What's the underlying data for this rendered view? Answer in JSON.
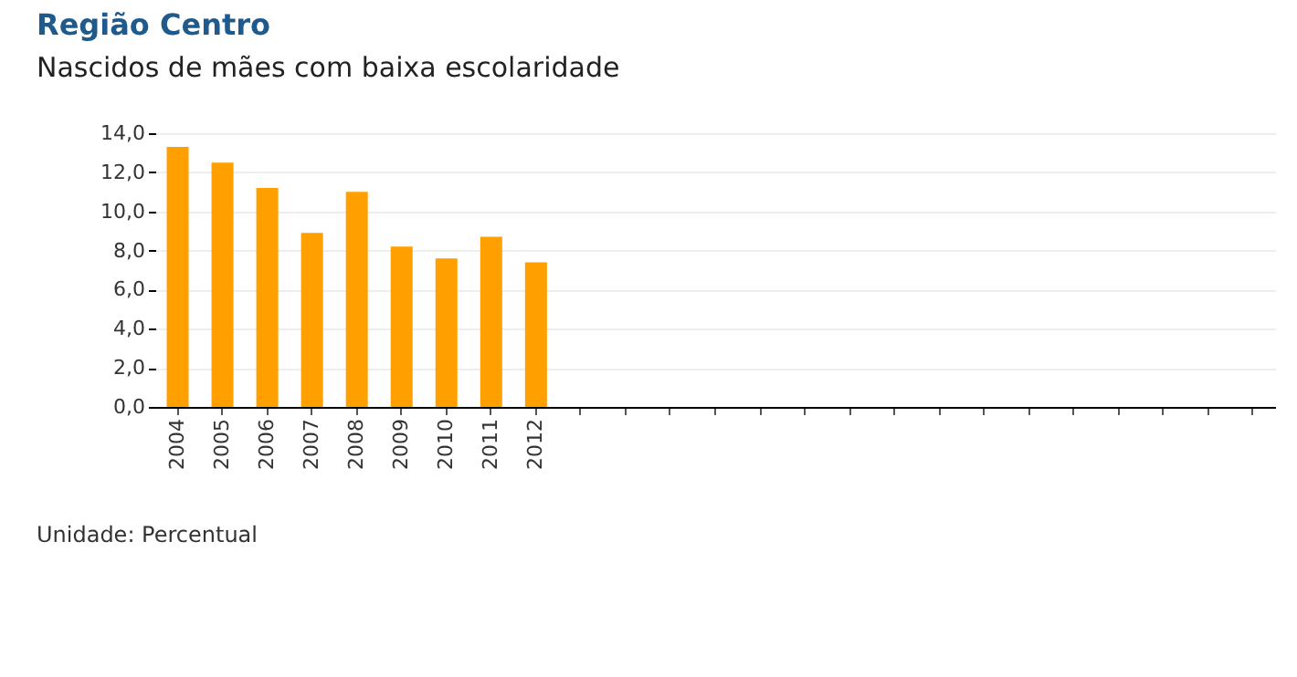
{
  "chart_data": {
    "type": "bar",
    "title": "Região Centro",
    "subtitle": "Nascidos de mães com baixa escolaridade",
    "categories": [
      "2004",
      "2005",
      "2006",
      "2007",
      "2008",
      "2009",
      "2010",
      "2011",
      "2012",
      null,
      null,
      null,
      null,
      null,
      null,
      null,
      null,
      null,
      null,
      null,
      null,
      null,
      null,
      null,
      null
    ],
    "values": [
      13.3,
      12.5,
      11.2,
      8.9,
      11.0,
      8.2,
      7.6,
      8.7,
      7.4,
      null,
      null,
      null,
      null,
      null,
      null,
      null,
      null,
      null,
      null,
      null,
      null,
      null,
      null,
      null,
      null
    ],
    "color": "#ff9f00",
    "ylim": [
      0,
      14
    ],
    "yticks": [
      {
        "value": 0,
        "label": "0,0"
      },
      {
        "value": 2,
        "label": "2,0"
      },
      {
        "value": 4,
        "label": "4,0"
      },
      {
        "value": 6,
        "label": "6,0"
      },
      {
        "value": 8,
        "label": "8,0"
      },
      {
        "value": 10,
        "label": "10,0"
      },
      {
        "value": 12,
        "label": "12,0"
      },
      {
        "value": 14,
        "label": "14,0"
      }
    ],
    "grid": "y",
    "annotations": [
      "Unidade: Percentual"
    ]
  }
}
